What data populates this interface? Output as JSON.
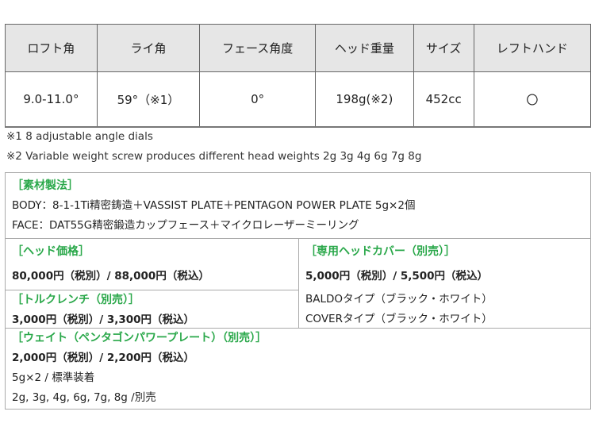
{
  "spec_table": {
    "headers": [
      "ロフト角",
      "ライ角",
      "フェース角度",
      "ヘッド重量",
      "サイズ",
      "レフトハンド"
    ],
    "values": [
      "9.0-11.0°",
      "59°（※1）",
      "0°",
      "198g(※2)",
      "452cc",
      "〇"
    ]
  },
  "notes": [
    "※1  8 adjustable angle dials",
    "※2 Variable weight screw produces different head weights 2g 3g 4g 6g 7g 8g"
  ],
  "materials": {
    "title": "［素材製法］",
    "lines": [
      "BODY：8-1-1Ti精密鋳造＋VASSIST PLATE＋PENTAGON POWER PLATE 5g×2個",
      "FACE：DAT55G精密鍛造カップフェース＋マイクロレーザーミーリング"
    ]
  },
  "head_price": {
    "title": "［ヘッド価格］",
    "price": "80,000円（税別）/ 88,000円（税込）"
  },
  "torque_wrench": {
    "title": "［トルクレンチ（別売）］",
    "price": "3,000円（税別）/ 3,300円（税込）"
  },
  "head_cover": {
    "title": "［専用ヘッドカバー（別売）］",
    "price": "5,000円（税別）/ 5,500円（税込）",
    "lines": [
      "BALDOタイプ（ブラック・ホワイト）",
      "COVERタイプ（ブラック・ホワイト）"
    ]
  },
  "weight": {
    "title": "［ウェイト（ペンタゴンパワープレート）（別売）］",
    "price": "2,000円（税別）/ 2,200円（税込）",
    "lines": [
      "5g×2 / 標準装着",
      "2g, 3g, 4g, 6g, 7g, 8g /別売"
    ]
  },
  "colors": {
    "accent": "#2aa84a",
    "header_bg": "#e6e6e6"
  }
}
